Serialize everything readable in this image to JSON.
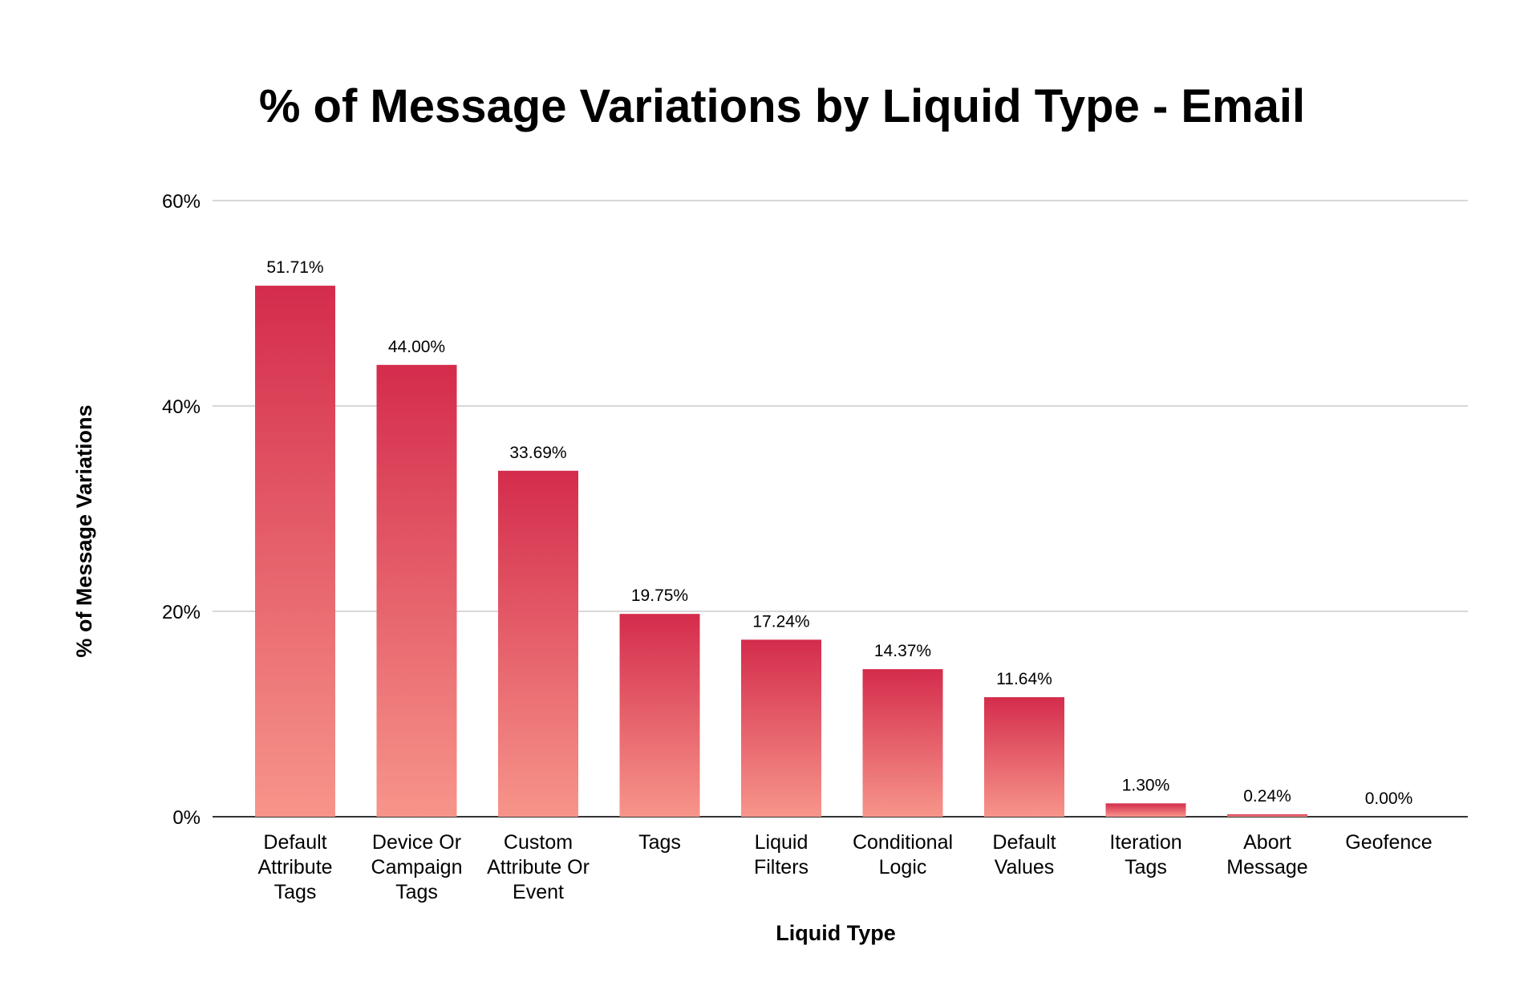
{
  "chart_data": {
    "type": "bar",
    "title": "% of Message Variations by Liquid Type - Email",
    "xlabel": "Liquid Type",
    "ylabel": "% of Message Variations",
    "ylim": [
      0,
      60
    ],
    "yticks": [
      0,
      20,
      40,
      60
    ],
    "ytick_labels": [
      "0%",
      "20%",
      "40%",
      "60%"
    ],
    "grid": true,
    "categories": [
      [
        "Default",
        "Attribute",
        "Tags"
      ],
      [
        "Device Or",
        "Campaign",
        "Tags"
      ],
      [
        "Custom",
        "Attribute Or",
        "Event"
      ],
      [
        "Tags"
      ],
      [
        "Liquid",
        "Filters"
      ],
      [
        "Conditional",
        "Logic"
      ],
      [
        "Default",
        "Values"
      ],
      [
        "Iteration",
        "Tags"
      ],
      [
        "Abort",
        "Message"
      ],
      [
        "Geofence"
      ]
    ],
    "values": [
      51.71,
      44.0,
      33.69,
      19.75,
      17.24,
      14.37,
      11.64,
      1.3,
      0.24,
      0.0
    ],
    "data_labels": [
      "51.71%",
      "44.00%",
      "33.69%",
      "19.75%",
      "17.24%",
      "14.37%",
      "11.64%",
      "1.30%",
      "0.24%",
      "0.00%"
    ],
    "colors": {
      "bar_top": "#d42c4c",
      "bar_bottom": "#f7958a"
    }
  }
}
